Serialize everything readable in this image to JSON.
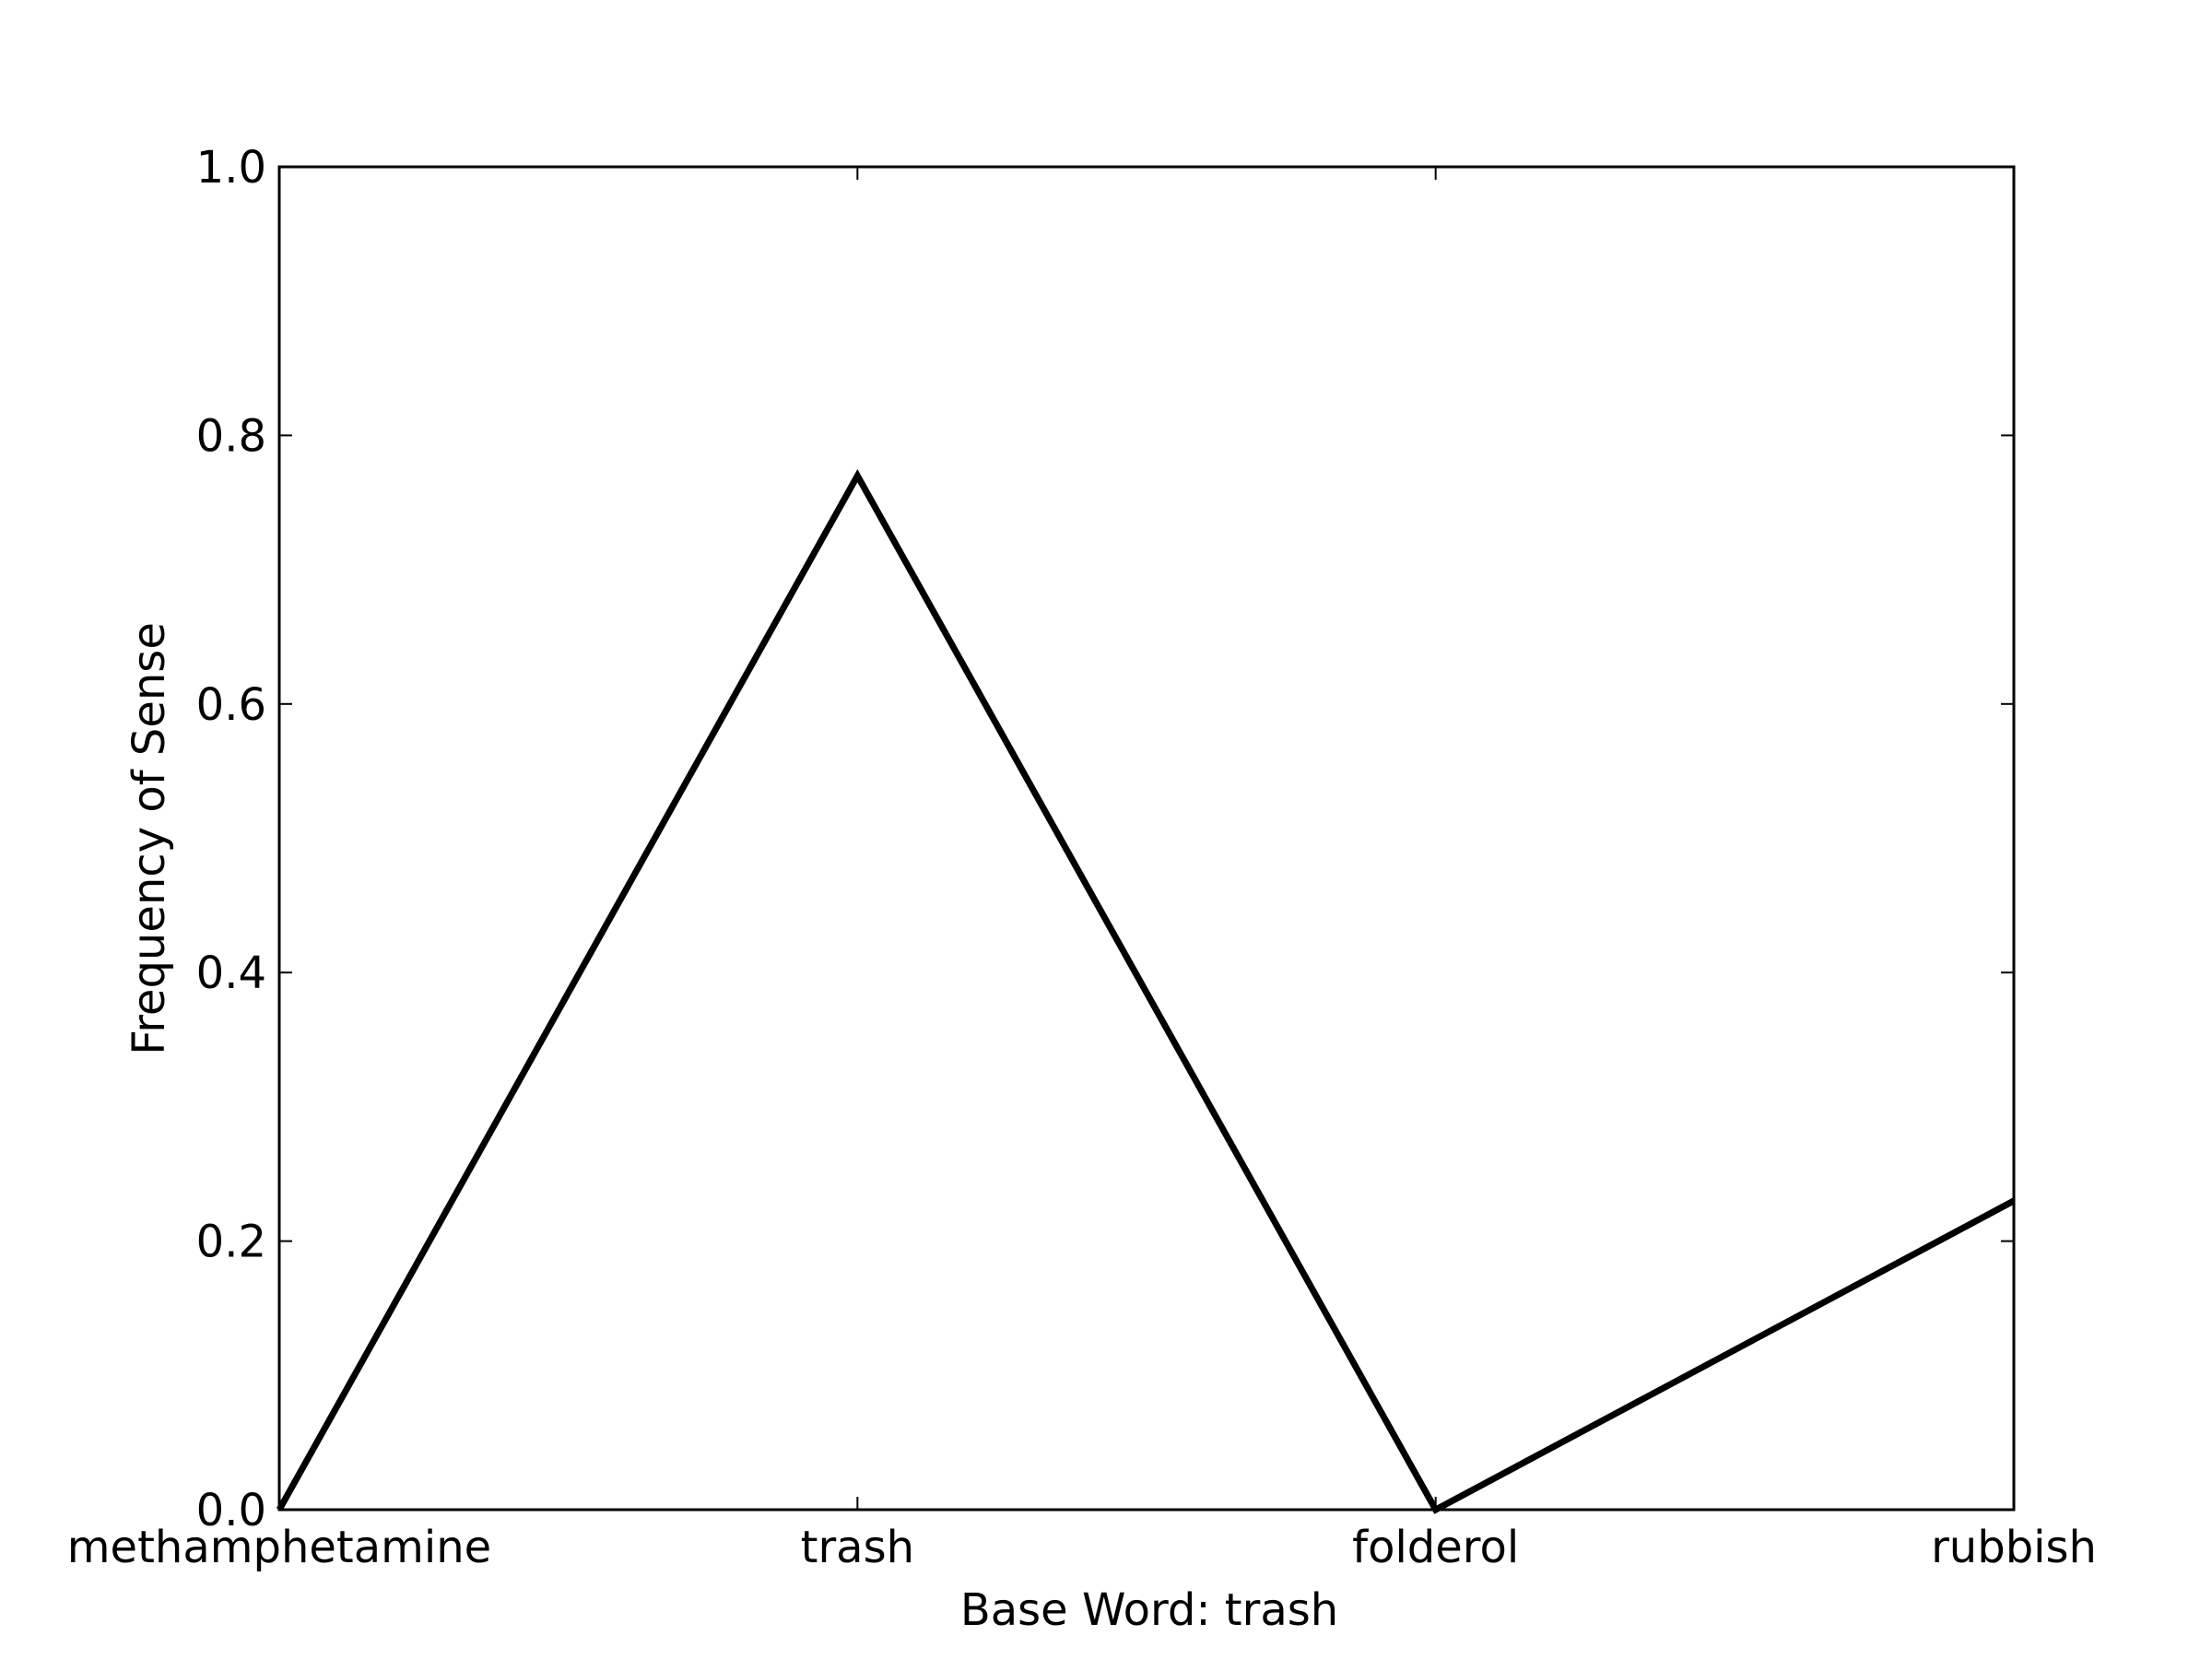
{
  "chart_data": {
    "type": "line",
    "title": "",
    "xlabel": "Base Word: trash",
    "ylabel": "Frequency of Sense",
    "categories": [
      "methamphetamine",
      "trash",
      "folderol",
      "rubbish"
    ],
    "series": [
      {
        "values": [
          0.0,
          0.77,
          0.0,
          0.23
        ]
      }
    ],
    "ylim": [
      0.0,
      1.0
    ],
    "yticks": [
      0.0,
      0.2,
      0.4,
      0.6,
      0.8,
      1.0
    ],
    "ytick_labels": [
      "0.0",
      "0.2",
      "0.4",
      "0.6",
      "0.8",
      "1.0"
    ],
    "grid": false,
    "legend": "none",
    "colors": {
      "line": "#000000",
      "axes": "#000000",
      "background": "#ffffff"
    }
  }
}
